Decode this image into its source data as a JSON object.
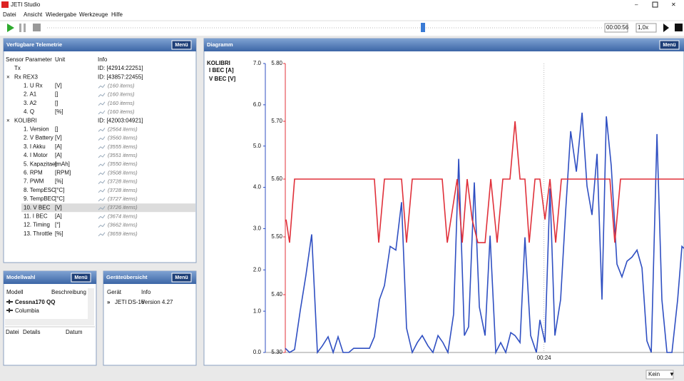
{
  "app": {
    "title": "JETI Studio",
    "menu": [
      "Datei",
      "Ansicht",
      "Wiedergabe",
      "Werkzeuge",
      "Hilfe"
    ]
  },
  "toolbar": {
    "time": "00:00:56",
    "speed": "1,0x"
  },
  "telemetry": {
    "title": "Verfügbare Telemetrie",
    "menu_button": "Menü",
    "columns": [
      "Sensor Parameter",
      "Unit",
      "Info"
    ],
    "groups": [
      {
        "name": "Tx",
        "info": "ID: [42914:22251]"
      },
      {
        "name": "Rx REX3",
        "info": "ID: [43857:22455]",
        "items": [
          [
            "1. U Rx",
            "[V]",
            "(160 items)"
          ],
          [
            "2. A1",
            "[]",
            "(160 items)"
          ],
          [
            "3. A2",
            "[]",
            "(160 items)"
          ],
          [
            "4. Q",
            "[%]",
            "(160 items)"
          ]
        ]
      },
      {
        "name": "KOLIBRI",
        "info": "ID: [42003:04921]",
        "items": [
          [
            "1. Version",
            "[]",
            "(2564 items)"
          ],
          [
            "2. V Battery",
            "[V]",
            "(3560 items)"
          ],
          [
            "3. I Akku",
            "[A]",
            "(3555 items)"
          ],
          [
            "4. I Motor",
            "[A]",
            "(3551 items)"
          ],
          [
            "5. Kapazitaet",
            "[mAh]",
            "(3550 items)"
          ],
          [
            "6. RPM",
            "[RPM]",
            "(3508 items)"
          ],
          [
            "7. PWM",
            "[%]",
            "(3728 items)"
          ],
          [
            "8. TempESC",
            "[°C]",
            "(3728 items)"
          ],
          [
            "9. TempBEC",
            "[°C]",
            "(3727 items)"
          ],
          [
            "10. V BEC",
            "[V]",
            "(3726 items)"
          ],
          [
            "11. I BEC",
            "[A]",
            "(3674 items)"
          ],
          [
            "12. Timing",
            "[°]",
            "(3662 items)"
          ],
          [
            "13. Throttle",
            "[%]",
            "(3659 items)"
          ]
        ]
      }
    ]
  },
  "models": {
    "title": "Modellwahl",
    "menu_button": "Menü",
    "columns": [
      "Modell",
      "Beschreibung"
    ],
    "rows": [
      "Cessna170 QQ",
      "Columbia"
    ],
    "file_columns": [
      "Datei",
      "Details",
      "Datum"
    ]
  },
  "devices": {
    "title": "Geräteübersicht",
    "menu_button": "Menü",
    "columns": [
      "Gerät",
      "Info"
    ],
    "rows": [
      [
        "JETI DS-16",
        "Version 4.27"
      ]
    ]
  },
  "diagram": {
    "title": "Diagramm",
    "menu_button": "Menü"
  },
  "status": {
    "filter": "Kein"
  },
  "chart_data": {
    "type": "line",
    "legend_title": "KOLIBRI",
    "xlim": [
      0,
      37
    ],
    "xticks": [
      {
        "value": 24,
        "label": "00:24"
      }
    ],
    "ylim": [
      0,
      7
    ],
    "yticks": [
      {
        "value": 0,
        "label": "0.0"
      },
      {
        "value": 1,
        "label": "1.0"
      },
      {
        "value": 2,
        "label": "2.0"
      },
      {
        "value": 3,
        "label": "3.0"
      },
      {
        "value": 4,
        "label": "4.0"
      },
      {
        "value": 5,
        "label": "5.0"
      },
      {
        "value": 6,
        "label": "6.0"
      },
      {
        "value": 7,
        "label": "7.0"
      }
    ],
    "y2lim": [
      5.3,
      5.8
    ],
    "y2ticks": [
      {
        "value": 5.3,
        "label": "5.30"
      },
      {
        "value": 5.4,
        "label": "5.40"
      },
      {
        "value": 5.5,
        "label": "5.50"
      },
      {
        "value": 5.6,
        "label": "5.60"
      },
      {
        "value": 5.7,
        "label": "5.70"
      },
      {
        "value": 5.8,
        "label": "5.80"
      }
    ],
    "series": [
      {
        "name": "I BEC [A]",
        "color": "#2f4fc2",
        "x": [
          0.0,
          0.4,
          0.86,
          1.39,
          1.92,
          2.45,
          2.98,
          3.44,
          3.97,
          4.44,
          4.9,
          5.36,
          5.89,
          6.35,
          6.82,
          7.35,
          7.81,
          8.27,
          8.74,
          9.2,
          9.73,
          10.26,
          10.79,
          11.25,
          11.78,
          12.25,
          12.71,
          13.24,
          13.7,
          14.17,
          14.63,
          15.09,
          15.62,
          16.09,
          16.62,
          17.01,
          17.54,
          18.01,
          18.54,
          19.0,
          19.53,
          19.99,
          20.46,
          20.92,
          21.32,
          21.78,
          22.24,
          22.77,
          23.3,
          23.63,
          24.1,
          24.56,
          25.02,
          25.55,
          26.02,
          26.48,
          27.01,
          27.54,
          28.0,
          28.46,
          28.93,
          29.39,
          29.79,
          30.25,
          30.78,
          31.24,
          31.71,
          32.17,
          32.64,
          33.1,
          33.56,
          33.96,
          34.49,
          34.95,
          35.42,
          35.88,
          36.41,
          36.81,
          37.0
        ],
        "values": [
          0.1,
          0.0,
          0.07,
          1.02,
          1.88,
          2.86,
          0.0,
          0.16,
          0.38,
          0.0,
          0.38,
          0.0,
          0.0,
          0.1,
          0.1,
          0.1,
          0.1,
          0.38,
          1.28,
          1.62,
          2.57,
          2.48,
          3.64,
          0.59,
          0.0,
          0.24,
          0.41,
          0.16,
          0.0,
          0.41,
          0.24,
          0.0,
          0.93,
          4.69,
          0.41,
          0.62,
          4.12,
          1.1,
          0.41,
          2.83,
          0.0,
          0.24,
          0.0,
          0.48,
          0.41,
          0.24,
          2.79,
          0.41,
          0.0,
          0.79,
          0.24,
          3.97,
          0.41,
          1.28,
          3.43,
          5.36,
          4.38,
          5.81,
          4.03,
          3.33,
          4.81,
          1.28,
          5.72,
          4.52,
          2.14,
          1.83,
          2.21,
          2.31,
          2.48,
          2.05,
          0.28,
          0.0,
          5.29,
          1.28,
          0.0,
          0.0,
          1.28,
          2.57,
          2.52
        ]
      },
      {
        "name": "V BEC [V]",
        "color": "#e0303a",
        "axis": "y2",
        "x": [
          0.07,
          0.4,
          0.86,
          8.27,
          8.67,
          9.2,
          10.79,
          11.25,
          11.78,
          14.56,
          15.03,
          15.95,
          16.42,
          16.88,
          17.34,
          17.87,
          18.54,
          19.07,
          19.66,
          20.19,
          20.85,
          21.32,
          21.78,
          22.24,
          22.64,
          23.17,
          23.63,
          24.1,
          24.56,
          25.09,
          25.62,
          30.12,
          30.58,
          31.11,
          37.0
        ],
        "values": [
          5.53,
          5.49,
          5.6,
          5.6,
          5.49,
          5.6,
          5.6,
          5.49,
          5.6,
          5.6,
          5.49,
          5.6,
          5.49,
          5.6,
          5.53,
          5.49,
          5.49,
          5.6,
          5.49,
          5.6,
          5.6,
          5.7,
          5.6,
          5.6,
          5.49,
          5.6,
          5.6,
          5.53,
          5.6,
          5.49,
          5.6,
          5.6,
          5.49,
          5.6,
          5.6
        ]
      }
    ]
  }
}
